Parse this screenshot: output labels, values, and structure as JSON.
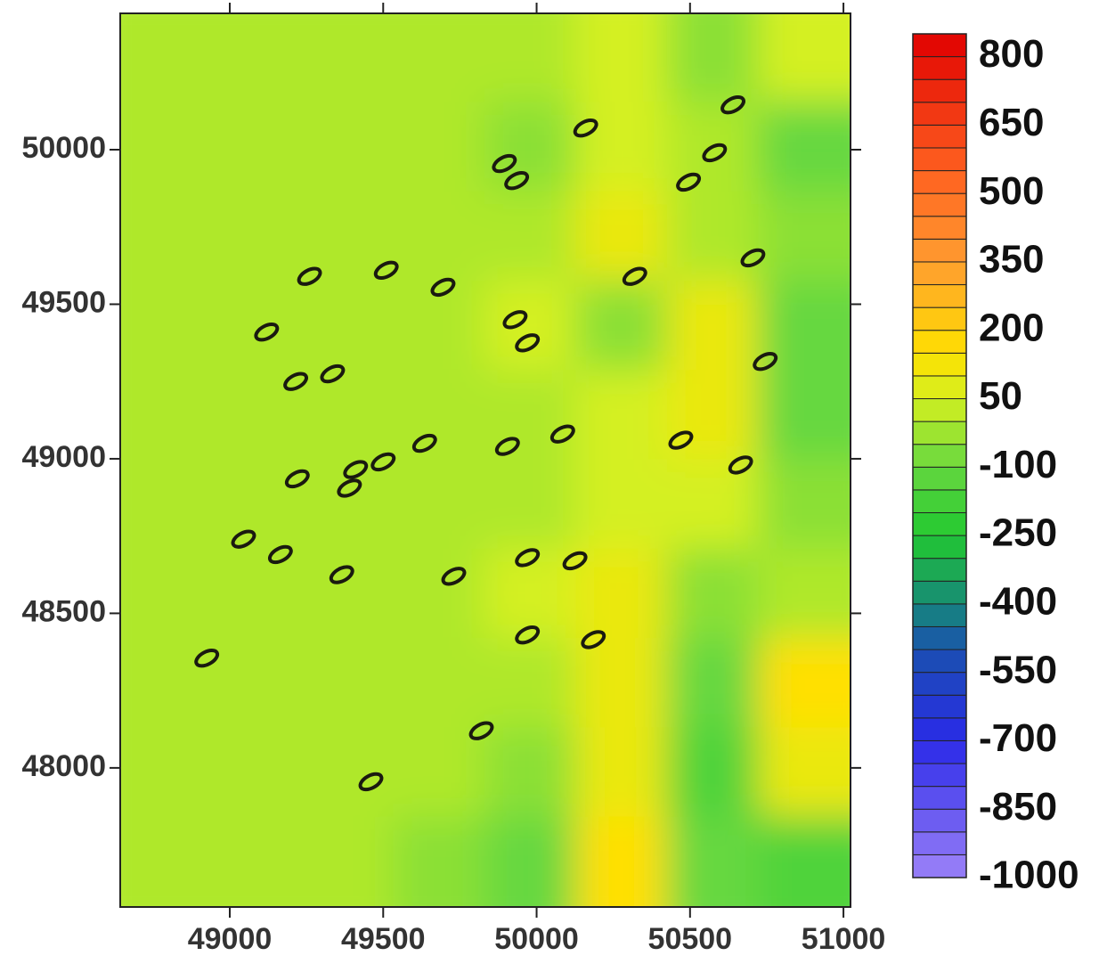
{
  "chart_data": {
    "type": "contour",
    "xlim": [
      48643,
      51023
    ],
    "ylim": [
      47550,
      50441
    ],
    "xticks": [
      49000,
      49500,
      50000,
      50500,
      51000
    ],
    "yticks": [
      48000,
      48500,
      49000,
      49500,
      50000
    ],
    "z": [
      [
        0,
        0,
        0,
        0,
        0,
        50,
        -50,
        50
      ],
      [
        0,
        0,
        0,
        0,
        -50,
        50,
        0,
        -100
      ],
      [
        0,
        0,
        0,
        0,
        0,
        100,
        0,
        -50
      ],
      [
        0,
        0,
        0,
        0,
        50,
        -50,
        100,
        -100
      ],
      [
        0,
        0,
        0,
        0,
        0,
        50,
        100,
        -100
      ],
      [
        0,
        0,
        0,
        0,
        0,
        50,
        50,
        -50
      ],
      [
        0,
        0,
        0,
        0,
        50,
        100,
        -50,
        0
      ],
      [
        0,
        0,
        0,
        0,
        0,
        100,
        -100,
        150
      ],
      [
        0,
        0,
        0,
        0,
        -50,
        100,
        -150,
        100
      ],
      [
        0,
        0,
        0,
        -50,
        -100,
        150,
        -100,
        -150
      ]
    ],
    "markers": {
      "x": [
        49260,
        49510,
        49695,
        49120,
        49215,
        49335,
        49930,
        49970,
        49895,
        49935,
        50160,
        50495,
        50640,
        50580,
        50705,
        50320,
        49635,
        49500,
        49410,
        49390,
        49220,
        49905,
        50085,
        50470,
        50665,
        50745,
        49045,
        49165,
        49365,
        49730,
        49970,
        50125,
        49970,
        50185,
        48925,
        49820,
        49460
      ],
      "y": [
        49590,
        49610,
        49555,
        49410,
        49250,
        49275,
        49450,
        49375,
        49955,
        49900,
        50070,
        49895,
        50145,
        49990,
        49650,
        49590,
        49050,
        48990,
        48965,
        48905,
        48935,
        49040,
        49080,
        49060,
        48980,
        49315,
        48740,
        48690,
        48625,
        48620,
        48680,
        48670,
        48430,
        48415,
        48355,
        48120,
        47955
      ]
    },
    "colorbar": {
      "clim": [
        -1000,
        850
      ],
      "contour_interval": 50,
      "ticks": [
        800,
        650,
        500,
        350,
        200,
        50,
        -100,
        -250,
        -400,
        -550,
        -700,
        -850,
        -1000
      ],
      "colorscale": [
        {
          "value": -1000,
          "color": "#9c82f8"
        },
        {
          "value": -700,
          "color": "#2a2ae8"
        },
        {
          "value": -500,
          "color": "#1a50b0"
        },
        {
          "value": -400,
          "color": "#168a78"
        },
        {
          "value": -250,
          "color": "#22c830"
        },
        {
          "value": -100,
          "color": "#66d840"
        },
        {
          "value": 50,
          "color": "#d4f020"
        },
        {
          "value": 150,
          "color": "#ffe000"
        },
        {
          "value": 350,
          "color": "#ff9c30"
        },
        {
          "value": 550,
          "color": "#ff6020"
        },
        {
          "value": 850,
          "color": "#e00000"
        }
      ]
    }
  }
}
